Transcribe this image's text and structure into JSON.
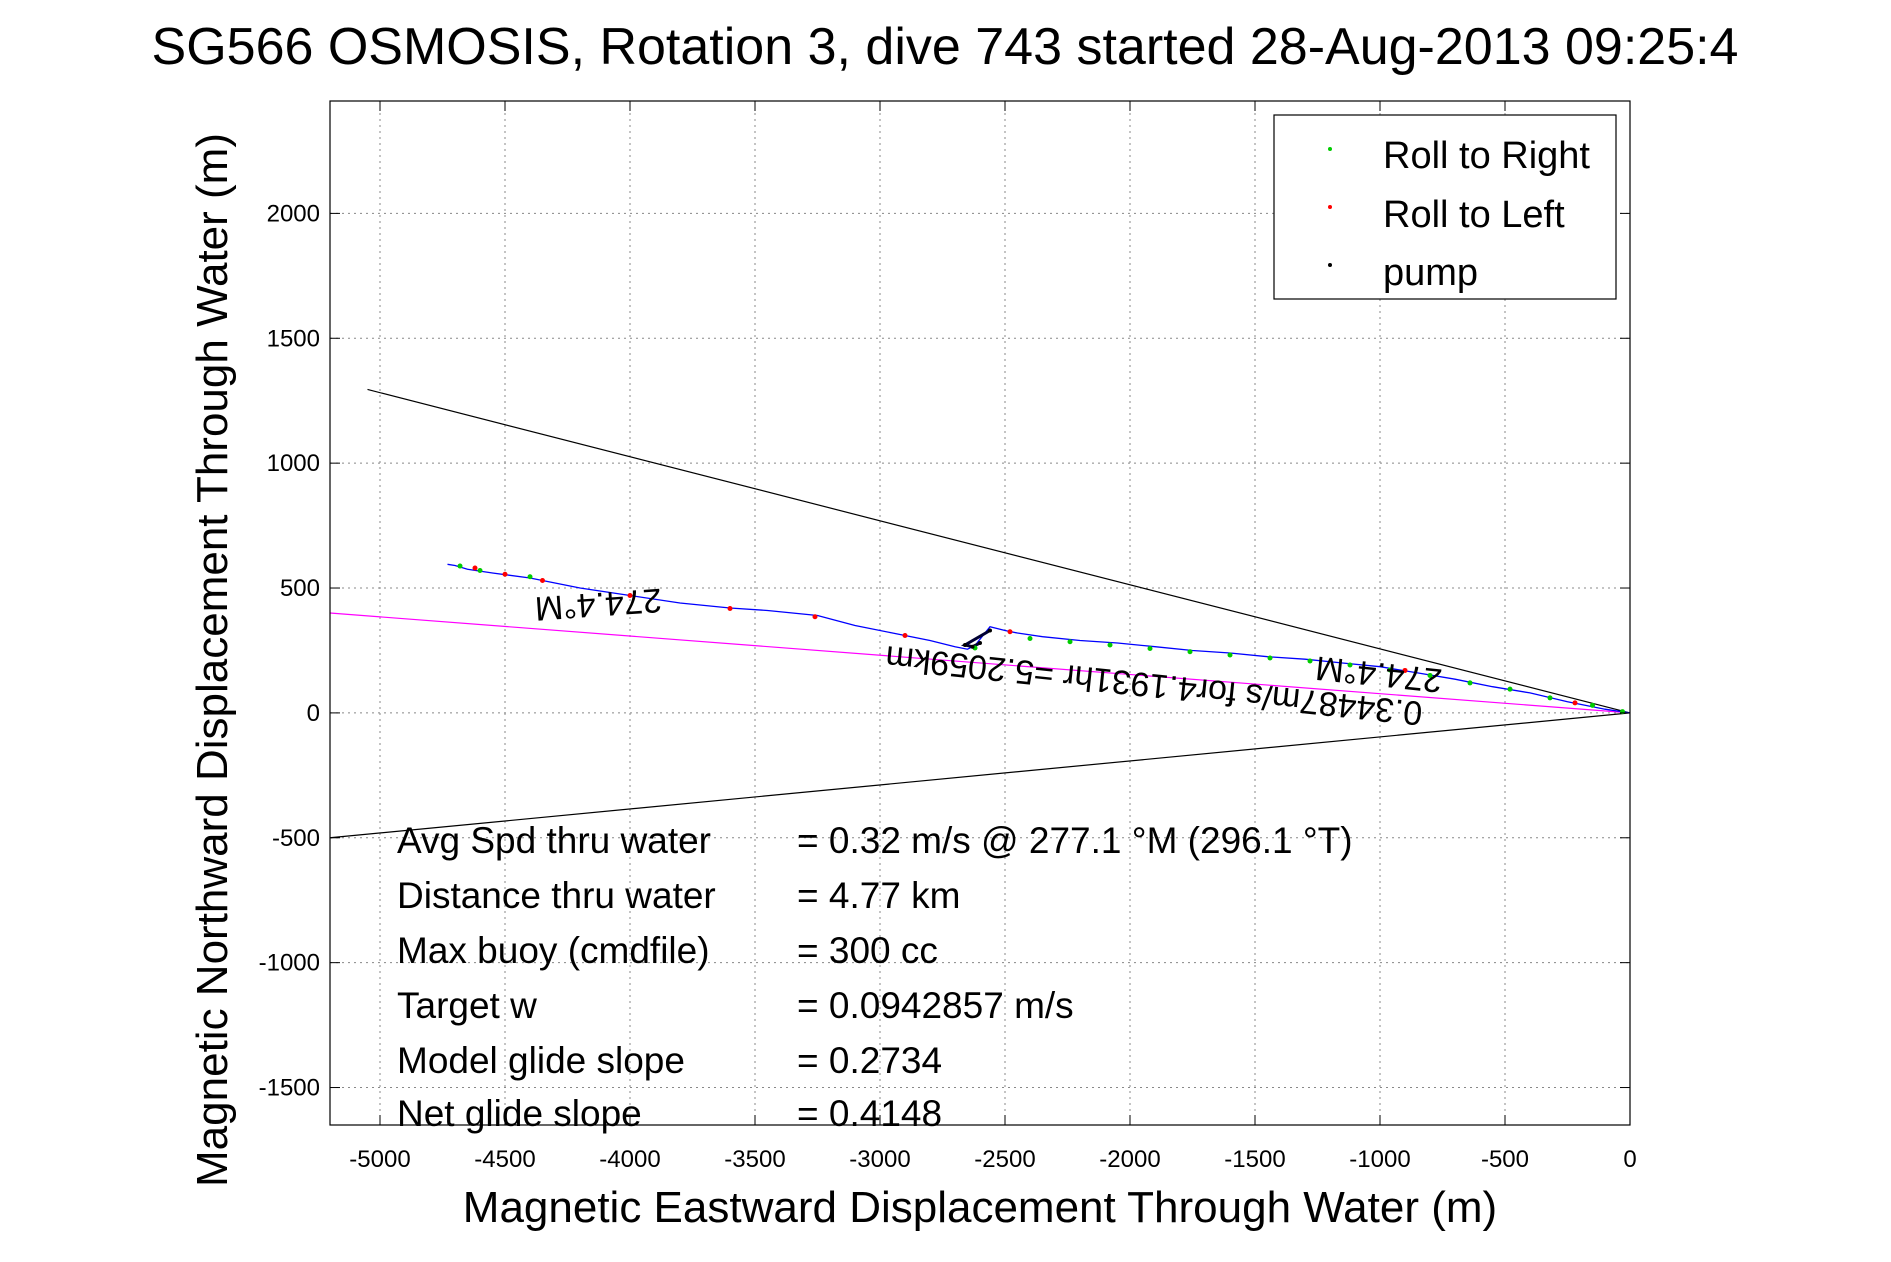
{
  "chart_data": {
    "type": "line",
    "title": "SG566 OSMOSIS, Rotation 3, dive 743 started 28-Aug-2013 09:25:4",
    "xlabel": "Magnetic Eastward Displacement Through Water (m)",
    "ylabel": "Magnetic Northward Displacement Through Water (m)",
    "xlim": [
      -5200,
      0
    ],
    "ylim": [
      -1650,
      2450
    ],
    "xticks": [
      -5000,
      -4500,
      -4000,
      -3500,
      -3000,
      -2500,
      -2000,
      -1500,
      -1000,
      -500,
      0
    ],
    "yticks": [
      -1500,
      -1000,
      -500,
      0,
      500,
      1000,
      1500,
      2000
    ],
    "grid": true,
    "legend_position": "top-right",
    "legend": [
      {
        "label": "Roll to Right",
        "color": "#00cc00"
      },
      {
        "label": "Roll to Left",
        "color": "#ff0000"
      },
      {
        "label": "pump",
        "color": "#000000"
      }
    ],
    "series": [
      {
        "name": "track",
        "color": "#0000ff",
        "x": [
          0,
          -100,
          -250,
          -400,
          -550,
          -700,
          -850,
          -1000,
          -1150,
          -1300,
          -1450,
          -1600,
          -1750,
          -1900,
          -2050,
          -2200,
          -2350,
          -2450,
          -2500,
          -2560,
          -2620,
          -2650,
          -2700,
          -2800,
          -2950,
          -3100,
          -3250,
          -3450,
          -3600,
          -3800,
          -4000,
          -4200,
          -4400,
          -4550,
          -4650,
          -4700,
          -4730
        ],
        "y": [
          0,
          15,
          45,
          80,
          105,
          135,
          160,
          185,
          200,
          215,
          225,
          240,
          250,
          265,
          280,
          290,
          305,
          320,
          330,
          345,
          270,
          255,
          265,
          290,
          320,
          350,
          390,
          410,
          420,
          440,
          470,
          500,
          540,
          560,
          575,
          590,
          595
        ]
      }
    ],
    "roll_right_points": {
      "x": [
        -30,
        -150,
        -320,
        -480,
        -640,
        -800,
        -960,
        -1120,
        -1280,
        -1440,
        -1600,
        -1760,
        -1920,
        -2080,
        -2240,
        -2400,
        -2620,
        -4400,
        -4600,
        -4680
      ],
      "y": [
        5,
        30,
        60,
        95,
        120,
        150,
        172,
        192,
        208,
        220,
        232,
        245,
        258,
        272,
        285,
        298,
        260,
        545,
        570,
        588
      ]
    },
    "roll_left_points": {
      "x": [
        -220,
        -900,
        -2480,
        -2900,
        -3260,
        -3600,
        -4000,
        -4350,
        -4500,
        -4620
      ],
      "y": [
        40,
        170,
        325,
        310,
        385,
        418,
        470,
        530,
        555,
        580
      ]
    },
    "pump_points": {
      "x": [
        -2600,
        -2630,
        -2660,
        -2560
      ],
      "y": [
        280,
        265,
        272,
        330
      ]
    },
    "reference_lines": [
      {
        "name": "upper-bound-line",
        "color": "#000000",
        "x": [
          0,
          -5050
        ],
        "y": [
          0,
          1295
        ]
      },
      {
        "name": "lower-bound-line",
        "color": "#000000",
        "x": [
          0,
          -5200
        ],
        "y": [
          0,
          -500
        ]
      },
      {
        "name": "heading-line",
        "color": "#ff00ff",
        "x": [
          0,
          -5200
        ],
        "y": [
          0,
          400
        ]
      }
    ],
    "annotations": [
      {
        "text": "274.4°M",
        "x": -4130,
        "y": 480,
        "rotation_deg": 176
      },
      {
        "text": "274.4°M",
        "x": -1000,
        "y": 200,
        "rotation_deg": 186
      },
      {
        "text": "0.34487m/s for4.1931hr =5.2059km",
        "x": -1900,
        "y": 155,
        "rotation_deg": 186
      }
    ],
    "stats": [
      {
        "label": "Avg Spd thru water",
        "value": "=  0.32 m/s @ 277.1 °M (296.1 °T)"
      },
      {
        "label": "Distance thru water",
        "value": "=  4.77 km"
      },
      {
        "label": "Max buoy (cmdfile)",
        "value": "= 300 cc"
      },
      {
        "label": "Target w",
        "value": "= 0.0942857 m/s"
      },
      {
        "label": "Model glide slope",
        "value": "= 0.2734"
      },
      {
        "label": "Net glide slope",
        "value": "= 0.4148"
      }
    ]
  }
}
